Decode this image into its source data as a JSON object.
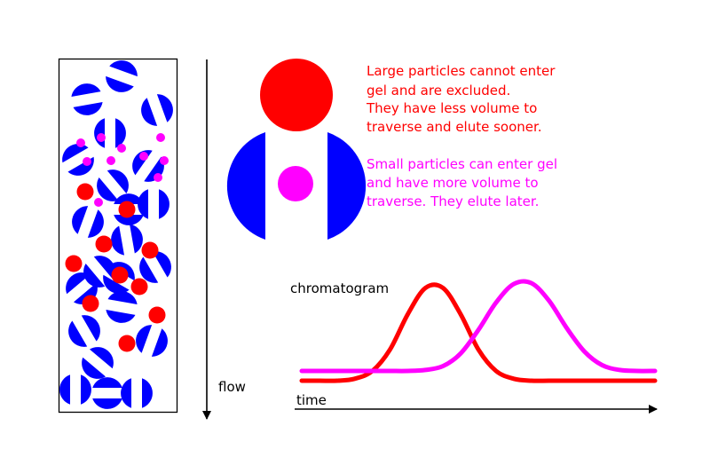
{
  "colors": {
    "large_particle": "#ff0000",
    "small_particle": "#ff00ff",
    "gel_bead": "#0000ff",
    "axis": "#000000"
  },
  "column": {
    "bead_icon": "gel-bead-icon",
    "large_particle_icon": "large-particle-icon",
    "small_particle_icon": "small-particle-icon"
  },
  "flow_label": "flow",
  "large_text": [
    "Large particles cannot enter",
    "gel and are excluded.",
    "They have less volume to",
    "traverse and elute sooner."
  ],
  "small_text": [
    "Small particles can enter gel",
    "and have more volume to",
    "traverse.  They elute later."
  ],
  "chromatogram": {
    "title": "chromatogram",
    "xlabel": "time"
  },
  "chart_data": {
    "type": "line",
    "title": "chromatogram",
    "xlabel": "time",
    "ylabel": "",
    "grid": false,
    "x": [
      0,
      5,
      10,
      15,
      20,
      25,
      30,
      35,
      40,
      45,
      50,
      55,
      60,
      65,
      70,
      75,
      80,
      85,
      90,
      95,
      100
    ],
    "series": [
      {
        "color": "#ff0000",
        "values": [
          0,
          0,
          0,
          0.02,
          0.1,
          0.32,
          0.68,
          0.95,
          0.95,
          0.68,
          0.32,
          0.1,
          0.02,
          0,
          0,
          0,
          0,
          0,
          0,
          0,
          0
        ]
      },
      {
        "color": "#ff00ff",
        "values": [
          0.1,
          0.1,
          0.1,
          0.1,
          0.1,
          0.1,
          0.1,
          0.11,
          0.15,
          0.28,
          0.52,
          0.8,
          0.99,
          1.0,
          0.82,
          0.54,
          0.3,
          0.16,
          0.11,
          0.1,
          0.1
        ]
      }
    ]
  }
}
